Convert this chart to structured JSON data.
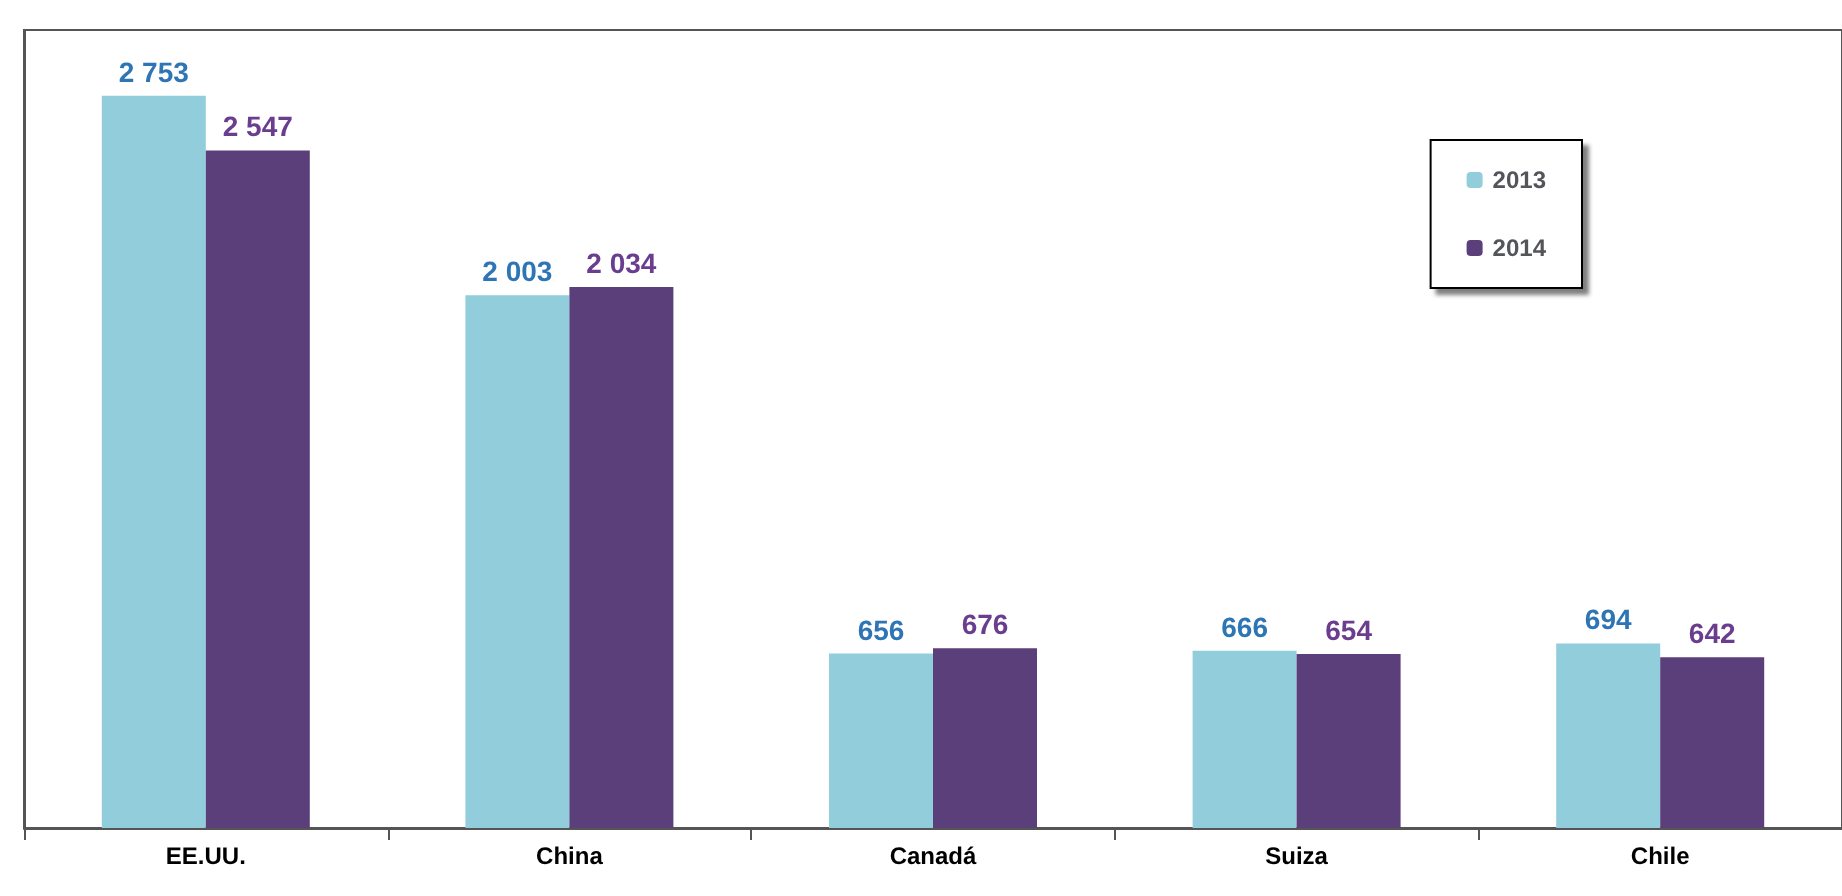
{
  "chart_data": {
    "type": "bar",
    "categories": [
      "EE.UU.",
      "China",
      "Canadá",
      "Suiza",
      "Chile"
    ],
    "legend": "top right",
    "grid": false,
    "series": [
      {
        "name": "2013",
        "color": "#92cddc",
        "values": [
          2753,
          2003,
          656,
          666,
          694
        ],
        "value_labels": [
          "2 753",
          "2 003",
          "656",
          "666",
          "694"
        ]
      },
      {
        "name": "2014",
        "color": "#5b3f7a",
        "values": [
          2547,
          2034,
          676,
          654,
          642
        ],
        "value_labels": [
          "2 547",
          "2 034",
          "676",
          "654",
          "642"
        ]
      }
    ]
  }
}
